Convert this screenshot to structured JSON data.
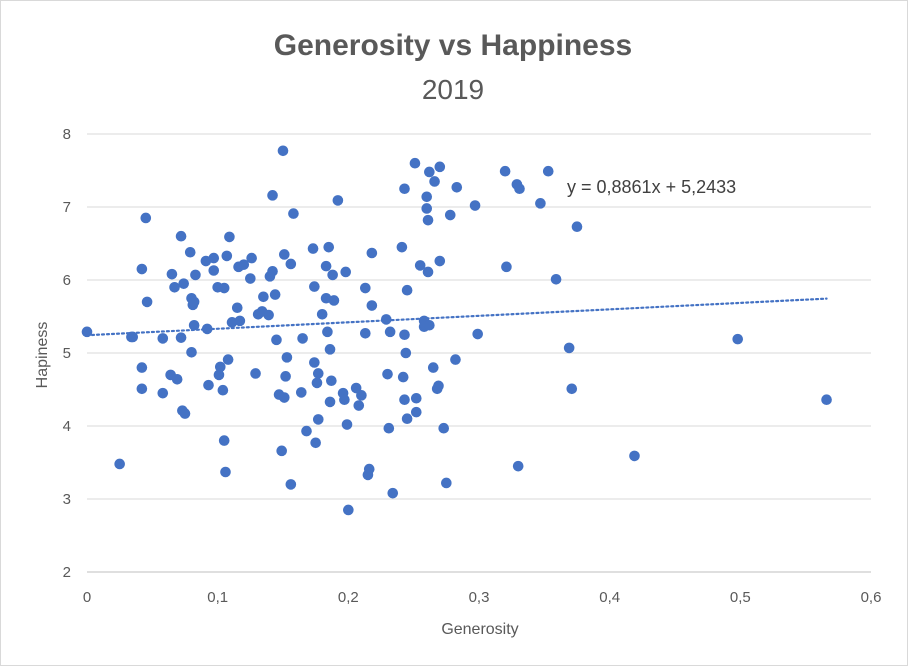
{
  "chart_data": {
    "type": "scatter",
    "title": "Generosity vs Happiness",
    "subtitle": "2019",
    "xlabel": "Generosity",
    "ylabel": "Hapiness",
    "xlim": [
      0,
      0.6
    ],
    "ylim": [
      2,
      8
    ],
    "xticks": [
      0,
      0.1,
      0.2,
      0.3,
      0.4,
      0.5,
      0.6
    ],
    "xtick_labels": [
      "0",
      "0,1",
      "0,2",
      "0,3",
      "0,4",
      "0,5",
      "0,6"
    ],
    "yticks": [
      2,
      3,
      4,
      5,
      6,
      7,
      8
    ],
    "ytick_labels": [
      "2",
      "3",
      "4",
      "5",
      "6",
      "7",
      "8"
    ],
    "grid": "horizontal",
    "point_color": "#4472c4",
    "trendline": {
      "type": "linear",
      "slope": 0.8861,
      "intercept": 5.2433,
      "x_range": [
        0,
        0.566
      ],
      "style": "dotted",
      "color": "#4472c4",
      "equation_label": "y = 0,8861x + 5,2433"
    },
    "points": [
      [
        0.0,
        5.29
      ],
      [
        0.025,
        3.48
      ],
      [
        0.034,
        5.22
      ],
      [
        0.035,
        5.22
      ],
      [
        0.042,
        6.15
      ],
      [
        0.042,
        4.8
      ],
      [
        0.042,
        4.51
      ],
      [
        0.045,
        6.85
      ],
      [
        0.046,
        5.7
      ],
      [
        0.058,
        5.2
      ],
      [
        0.058,
        4.45
      ],
      [
        0.064,
        4.7
      ],
      [
        0.065,
        6.08
      ],
      [
        0.067,
        5.9
      ],
      [
        0.069,
        4.64
      ],
      [
        0.072,
        6.6
      ],
      [
        0.072,
        5.21
      ],
      [
        0.073,
        4.21
      ],
      [
        0.074,
        5.95
      ],
      [
        0.075,
        4.17
      ],
      [
        0.079,
        6.38
      ],
      [
        0.08,
        5.75
      ],
      [
        0.08,
        5.01
      ],
      [
        0.081,
        5.66
      ],
      [
        0.082,
        5.38
      ],
      [
        0.082,
        5.7
      ],
      [
        0.083,
        6.07
      ],
      [
        0.091,
        6.26
      ],
      [
        0.092,
        5.33
      ],
      [
        0.093,
        4.56
      ],
      [
        0.097,
        6.3
      ],
      [
        0.097,
        6.13
      ],
      [
        0.1,
        5.9
      ],
      [
        0.101,
        4.7
      ],
      [
        0.102,
        4.81
      ],
      [
        0.104,
        4.49
      ],
      [
        0.105,
        3.8
      ],
      [
        0.105,
        5.89
      ],
      [
        0.106,
        3.37
      ],
      [
        0.107,
        6.33
      ],
      [
        0.108,
        4.91
      ],
      [
        0.109,
        6.59
      ],
      [
        0.111,
        5.42
      ],
      [
        0.115,
        5.62
      ],
      [
        0.116,
        6.18
      ],
      [
        0.117,
        5.44
      ],
      [
        0.12,
        6.21
      ],
      [
        0.125,
        6.02
      ],
      [
        0.126,
        6.3
      ],
      [
        0.129,
        4.72
      ],
      [
        0.131,
        5.53
      ],
      [
        0.134,
        5.57
      ],
      [
        0.135,
        5.77
      ],
      [
        0.139,
        5.52
      ],
      [
        0.14,
        6.05
      ],
      [
        0.142,
        7.16
      ],
      [
        0.142,
        6.12
      ],
      [
        0.144,
        5.8
      ],
      [
        0.145,
        5.18
      ],
      [
        0.147,
        4.43
      ],
      [
        0.149,
        3.66
      ],
      [
        0.15,
        7.77
      ],
      [
        0.151,
        4.39
      ],
      [
        0.151,
        6.35
      ],
      [
        0.152,
        4.68
      ],
      [
        0.153,
        4.94
      ],
      [
        0.156,
        6.22
      ],
      [
        0.156,
        3.2
      ],
      [
        0.158,
        6.91
      ],
      [
        0.164,
        4.46
      ],
      [
        0.165,
        5.2
      ],
      [
        0.168,
        3.93
      ],
      [
        0.173,
        6.43
      ],
      [
        0.174,
        5.91
      ],
      [
        0.174,
        4.87
      ],
      [
        0.175,
        3.77
      ],
      [
        0.176,
        4.59
      ],
      [
        0.177,
        4.72
      ],
      [
        0.177,
        4.09
      ],
      [
        0.18,
        5.53
      ],
      [
        0.183,
        5.75
      ],
      [
        0.183,
        6.19
      ],
      [
        0.184,
        5.29
      ],
      [
        0.185,
        6.45
      ],
      [
        0.186,
        4.33
      ],
      [
        0.186,
        5.05
      ],
      [
        0.187,
        4.62
      ],
      [
        0.188,
        6.07
      ],
      [
        0.189,
        5.72
      ],
      [
        0.192,
        7.09
      ],
      [
        0.196,
        4.45
      ],
      [
        0.197,
        4.36
      ],
      [
        0.198,
        6.11
      ],
      [
        0.199,
        4.02
      ],
      [
        0.2,
        2.85
      ],
      [
        0.206,
        4.52
      ],
      [
        0.208,
        4.28
      ],
      [
        0.21,
        4.42
      ],
      [
        0.213,
        5.89
      ],
      [
        0.213,
        5.27
      ],
      [
        0.215,
        3.33
      ],
      [
        0.216,
        3.41
      ],
      [
        0.218,
        6.37
      ],
      [
        0.218,
        5.65
      ],
      [
        0.229,
        5.46
      ],
      [
        0.23,
        4.71
      ],
      [
        0.231,
        3.97
      ],
      [
        0.232,
        5.29
      ],
      [
        0.234,
        3.08
      ],
      [
        0.241,
        6.45
      ],
      [
        0.242,
        4.67
      ],
      [
        0.243,
        4.36
      ],
      [
        0.243,
        5.25
      ],
      [
        0.243,
        7.25
      ],
      [
        0.244,
        5.0
      ],
      [
        0.245,
        4.1
      ],
      [
        0.245,
        5.86
      ],
      [
        0.251,
        7.6
      ],
      [
        0.252,
        4.38
      ],
      [
        0.252,
        4.19
      ],
      [
        0.255,
        6.2
      ],
      [
        0.258,
        5.44
      ],
      [
        0.258,
        5.36
      ],
      [
        0.259,
        5.38
      ],
      [
        0.26,
        7.14
      ],
      [
        0.26,
        6.98
      ],
      [
        0.261,
        6.11
      ],
      [
        0.261,
        6.82
      ],
      [
        0.262,
        7.48
      ],
      [
        0.262,
        5.38
      ],
      [
        0.265,
        4.8
      ],
      [
        0.266,
        7.35
      ],
      [
        0.268,
        4.51
      ],
      [
        0.269,
        4.55
      ],
      [
        0.27,
        7.55
      ],
      [
        0.27,
        6.26
      ],
      [
        0.273,
        3.97
      ],
      [
        0.275,
        3.22
      ],
      [
        0.278,
        6.89
      ],
      [
        0.282,
        4.91
      ],
      [
        0.283,
        7.27
      ],
      [
        0.297,
        7.02
      ],
      [
        0.299,
        5.26
      ],
      [
        0.32,
        7.49
      ],
      [
        0.321,
        6.18
      ],
      [
        0.329,
        7.31
      ],
      [
        0.33,
        3.45
      ],
      [
        0.331,
        7.25
      ],
      [
        0.347,
        7.05
      ],
      [
        0.353,
        7.49
      ],
      [
        0.359,
        6.01
      ],
      [
        0.369,
        5.07
      ],
      [
        0.371,
        4.51
      ],
      [
        0.375,
        6.73
      ],
      [
        0.419,
        3.59
      ],
      [
        0.498,
        5.19
      ],
      [
        0.566,
        4.36
      ]
    ]
  }
}
